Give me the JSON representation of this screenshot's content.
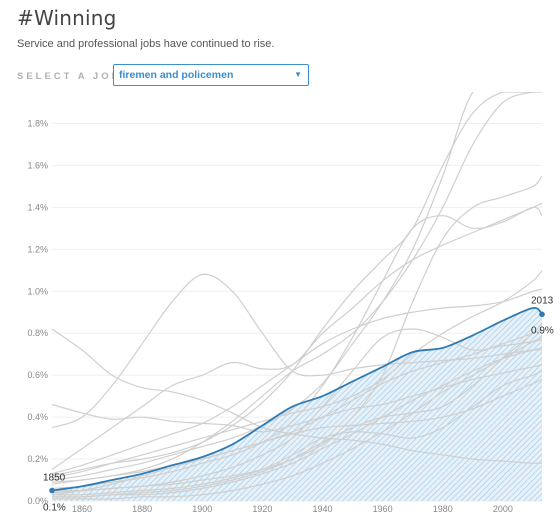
{
  "header": {
    "title": "#Winning",
    "subtitle": "Service and professional jobs have continued to rise."
  },
  "selector": {
    "label": "SELECT A JOB:",
    "value": "firemen and policemen"
  },
  "colors": {
    "highlight": "#2e7ab5",
    "highlight_fill": "#bcd9ee",
    "background_lines": "#cfcfcf",
    "grid": "#efefef",
    "select_accent": "#3b8ed0"
  },
  "chart_data": {
    "type": "line",
    "x_ticks": [
      1860,
      1880,
      1900,
      1920,
      1940,
      1960,
      1980,
      2000
    ],
    "y_ticks": [
      0,
      0.2,
      0.4,
      0.6,
      0.8,
      1.0,
      1.2,
      1.4,
      1.6,
      1.8
    ],
    "y_tick_labels": [
      "0.0%",
      "0.2%",
      "0.4%",
      "0.6%",
      "0.8%",
      "1.0%",
      "1.2%",
      "1.4%",
      "1.6%",
      "1.8%"
    ],
    "xlim": [
      1850,
      2013
    ],
    "ylim": [
      0,
      1.95
    ],
    "grid": true,
    "highlight": {
      "x": [
        1850,
        1860,
        1870,
        1880,
        1890,
        1900,
        1910,
        1920,
        1930,
        1940,
        1950,
        1960,
        1970,
        1980,
        1990,
        2000,
        2010,
        2013
      ],
      "values": [
        0.05,
        0.07,
        0.1,
        0.13,
        0.17,
        0.21,
        0.27,
        0.36,
        0.45,
        0.5,
        0.57,
        0.64,
        0.71,
        0.73,
        0.79,
        0.86,
        0.92,
        0.89
      ],
      "start": {
        "year": "1850",
        "value": "0.1%"
      },
      "end": {
        "year": "2013",
        "value": "0.9%"
      }
    },
    "background_series": [
      {
        "x": [
          1850,
          1860,
          1870,
          1880,
          1890,
          1900,
          1910,
          1920,
          1930,
          1940,
          1950,
          1960,
          1970,
          1980,
          1990,
          2000,
          2010,
          2013
        ],
        "values": [
          0.82,
          0.72,
          0.6,
          0.54,
          0.52,
          0.48,
          0.42,
          0.35,
          0.32,
          0.3,
          0.29,
          0.27,
          0.24,
          0.22,
          0.2,
          0.19,
          0.18,
          0.18
        ]
      },
      {
        "x": [
          1850,
          1860,
          1870,
          1880,
          1890,
          1900,
          1910,
          1920,
          1930,
          1940,
          1950,
          1960,
          1970,
          1980,
          1990,
          2000,
          2010,
          2013
        ],
        "values": [
          0.46,
          0.42,
          0.39,
          0.4,
          0.38,
          0.37,
          0.36,
          0.33,
          0.36,
          0.4,
          0.44,
          0.46,
          0.5,
          0.54,
          0.58,
          0.61,
          0.64,
          0.65
        ]
      },
      {
        "x": [
          1850,
          1860,
          1870,
          1880,
          1890,
          1900,
          1910,
          1920,
          1930,
          1940,
          1950,
          1960,
          1970,
          1980,
          1990,
          2000,
          2010,
          2013
        ],
        "values": [
          0.35,
          0.4,
          0.55,
          0.75,
          0.95,
          1.08,
          1.0,
          0.8,
          0.62,
          0.6,
          0.63,
          0.65,
          0.66,
          0.67,
          0.68,
          0.7,
          0.72,
          0.72
        ]
      },
      {
        "x": [
          1850,
          1860,
          1870,
          1880,
          1890,
          1900,
          1910,
          1920,
          1930,
          1940,
          1950,
          1960,
          1970,
          1980,
          1990,
          2000,
          2010,
          2013
        ],
        "values": [
          0.15,
          0.25,
          0.35,
          0.45,
          0.55,
          0.6,
          0.66,
          0.63,
          0.65,
          0.8,
          0.92,
          1.05,
          1.15,
          1.22,
          1.28,
          1.34,
          1.4,
          1.42
        ]
      },
      {
        "x": [
          1850,
          1860,
          1870,
          1880,
          1890,
          1900,
          1910,
          1920,
          1930,
          1940,
          1950,
          1960,
          1970,
          1980,
          1990,
          2000,
          2010,
          2013
        ],
        "values": [
          0.12,
          0.15,
          0.18,
          0.2,
          0.23,
          0.28,
          0.36,
          0.47,
          0.62,
          0.82,
          1.0,
          1.15,
          1.3,
          1.6,
          1.85,
          1.95,
          1.95,
          1.95
        ]
      },
      {
        "x": [
          1850,
          1860,
          1870,
          1880,
          1890,
          1900,
          1910,
          1920,
          1930,
          1940,
          1950,
          1960,
          1970,
          1980,
          1990,
          2000,
          2010,
          2013
        ],
        "values": [
          0.1,
          0.12,
          0.15,
          0.18,
          0.22,
          0.26,
          0.3,
          0.36,
          0.44,
          0.56,
          0.75,
          0.95,
          1.2,
          1.55,
          1.95,
          1.95,
          1.95,
          1.95
        ]
      },
      {
        "x": [
          1850,
          1860,
          1870,
          1880,
          1890,
          1900,
          1910,
          1920,
          1930,
          1940,
          1950,
          1960,
          1970,
          1980,
          1990,
          2000,
          2010,
          2013
        ],
        "values": [
          0.08,
          0.1,
          0.12,
          0.15,
          0.2,
          0.28,
          0.38,
          0.5,
          0.62,
          0.7,
          0.8,
          0.95,
          1.15,
          1.4,
          1.7,
          1.9,
          1.95,
          1.95
        ]
      },
      {
        "x": [
          1850,
          1860,
          1870,
          1880,
          1890,
          1900,
          1910,
          1920,
          1930,
          1940,
          1950,
          1960,
          1970,
          1980,
          1990,
          2000,
          2010,
          2013
        ],
        "values": [
          0.06,
          0.07,
          0.09,
          0.11,
          0.14,
          0.18,
          0.22,
          0.28,
          0.38,
          0.55,
          0.78,
          1.05,
          1.3,
          1.36,
          1.3,
          1.33,
          1.4,
          1.36
        ]
      },
      {
        "x": [
          1850,
          1860,
          1870,
          1880,
          1890,
          1900,
          1910,
          1920,
          1930,
          1940,
          1950,
          1960,
          1970,
          1980,
          1990,
          2000,
          2010,
          2013
        ],
        "values": [
          0.04,
          0.05,
          0.06,
          0.07,
          0.08,
          0.1,
          0.12,
          0.15,
          0.2,
          0.27,
          0.4,
          0.6,
          0.95,
          1.25,
          1.4,
          1.45,
          1.5,
          1.55
        ]
      },
      {
        "x": [
          1850,
          1860,
          1870,
          1880,
          1890,
          1900,
          1910,
          1920,
          1930,
          1940,
          1950,
          1960,
          1970,
          1980,
          1990,
          2000,
          2010,
          2013
        ],
        "values": [
          0.13,
          0.17,
          0.22,
          0.27,
          0.32,
          0.37,
          0.45,
          0.55,
          0.65,
          0.75,
          0.82,
          0.87,
          0.9,
          0.92,
          0.93,
          0.95,
          1.0,
          1.01
        ]
      },
      {
        "x": [
          1850,
          1860,
          1870,
          1880,
          1890,
          1900,
          1910,
          1920,
          1930,
          1940,
          1950,
          1960,
          1970,
          1980,
          1990,
          2000,
          2010,
          2013
        ],
        "values": [
          0.11,
          0.14,
          0.18,
          0.22,
          0.26,
          0.3,
          0.34,
          0.38,
          0.42,
          0.45,
          0.5,
          0.58,
          0.7,
          0.8,
          0.88,
          0.95,
          1.05,
          1.1
        ]
      },
      {
        "x": [
          1850,
          1860,
          1870,
          1880,
          1890,
          1900,
          1910,
          1920,
          1930,
          1940,
          1950,
          1960,
          1970,
          1980,
          1990,
          2000,
          2010,
          2013
        ],
        "values": [
          0.09,
          0.1,
          0.12,
          0.14,
          0.17,
          0.2,
          0.24,
          0.28,
          0.33,
          0.4,
          0.48,
          0.56,
          0.62,
          0.66,
          0.7,
          0.75,
          0.8,
          0.82
        ]
      },
      {
        "x": [
          1850,
          1860,
          1870,
          1880,
          1890,
          1900,
          1910,
          1920,
          1930,
          1940,
          1950,
          1960,
          1970,
          1980,
          1990,
          2000,
          2010,
          2013
        ],
        "values": [
          0.05,
          0.05,
          0.06,
          0.07,
          0.09,
          0.12,
          0.16,
          0.22,
          0.3,
          0.45,
          0.62,
          0.78,
          0.82,
          0.78,
          0.72,
          0.74,
          0.76,
          0.77
        ]
      },
      {
        "x": [
          1850,
          1860,
          1870,
          1880,
          1890,
          1900,
          1910,
          1920,
          1930,
          1940,
          1950,
          1960,
          1970,
          1980,
          1990,
          2000,
          2010,
          2013
        ],
        "values": [
          0.02,
          0.02,
          0.03,
          0.04,
          0.05,
          0.07,
          0.1,
          0.14,
          0.2,
          0.28,
          0.35,
          0.4,
          0.42,
          0.45,
          0.55,
          0.68,
          0.8,
          0.85
        ]
      },
      {
        "x": [
          1850,
          1860,
          1870,
          1880,
          1890,
          1900,
          1910,
          1920,
          1930,
          1940,
          1950,
          1960,
          1970,
          1980,
          1990,
          2000,
          2010,
          2013
        ],
        "values": [
          0.03,
          0.03,
          0.04,
          0.05,
          0.06,
          0.08,
          0.11,
          0.15,
          0.22,
          0.3,
          0.33,
          0.32,
          0.3,
          0.35,
          0.45,
          0.55,
          0.6,
          0.62
        ]
      },
      {
        "x": [
          1850,
          1860,
          1870,
          1880,
          1890,
          1900,
          1910,
          1920,
          1930,
          1940,
          1950,
          1960,
          1970,
          1980,
          1990,
          2000,
          2010,
          2013
        ],
        "values": [
          0.02,
          0.02,
          0.03,
          0.03,
          0.04,
          0.06,
          0.09,
          0.13,
          0.18,
          0.25,
          0.32,
          0.4,
          0.48,
          0.55,
          0.62,
          0.68,
          0.72,
          0.73
        ]
      },
      {
        "x": [
          1850,
          1860,
          1870,
          1880,
          1890,
          1900,
          1910,
          1920,
          1930,
          1940,
          1950,
          1960,
          1970,
          1980,
          1990,
          2000,
          2010,
          2013
        ],
        "values": [
          0.01,
          0.01,
          0.01,
          0.02,
          0.02,
          0.03,
          0.05,
          0.08,
          0.12,
          0.18,
          0.25,
          0.33,
          0.42,
          0.52,
          0.6,
          0.68,
          0.76,
          0.78
        ]
      },
      {
        "x": [
          1850,
          1860,
          1870,
          1880,
          1890,
          1900,
          1910,
          1920,
          1930,
          1940,
          1950,
          1960,
          1970,
          1980,
          1990,
          2000,
          2010,
          2013
        ],
        "values": [
          0.03,
          0.05,
          0.08,
          0.12,
          0.16,
          0.2,
          0.24,
          0.28,
          0.32,
          0.35,
          0.36,
          0.37,
          0.38,
          0.4,
          0.44,
          0.5,
          0.56,
          0.58
        ]
      }
    ]
  }
}
